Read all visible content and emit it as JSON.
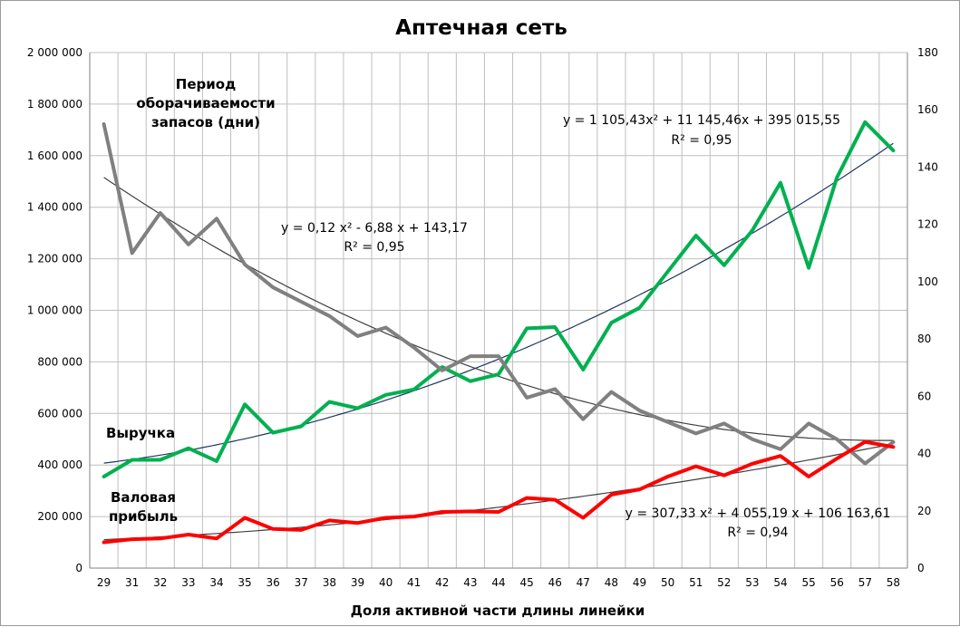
{
  "chart_data": {
    "type": "line",
    "title": "Аптечная сеть",
    "xlabel": "Доля активной части длины линейки",
    "ylabel": "",
    "x": [
      "29",
      "31",
      "32",
      "33",
      "34",
      "35",
      "36",
      "37",
      "38",
      "39",
      "40",
      "41",
      "42",
      "43",
      "44",
      "45",
      "46",
      "47",
      "48",
      "49",
      "50",
      "51",
      "52",
      "53",
      "54",
      "55",
      "56",
      "57",
      "58"
    ],
    "ylim": [
      0,
      2000000
    ],
    "y2lim": [
      0,
      180
    ],
    "y_ticks": [
      "0",
      "200 000",
      "400 000",
      "600 000",
      "800 000",
      "1 000 000",
      "1 200 000",
      "1 400 000",
      "1 600 000",
      "1 800 000",
      "2 000 000"
    ],
    "y2_ticks": [
      "0",
      "20",
      "40",
      "60",
      "80",
      "100",
      "120",
      "140",
      "160",
      "180"
    ],
    "series": [
      {
        "name": "Выручка",
        "axis": "left",
        "color": "#00b050",
        "values": [
          355000,
          420000,
          420000,
          465000,
          415000,
          635000,
          525000,
          550000,
          645000,
          620000,
          672000,
          693000,
          780000,
          725000,
          752000,
          930000,
          935000,
          770000,
          952000,
          1010000,
          1150000,
          1290000,
          1175000,
          1310000,
          1495000,
          1165000,
          1515000,
          1730000,
          1620000
        ]
      },
      {
        "name": "Период оборачиваемости запасов (дни)",
        "axis": "right",
        "color": "#808080",
        "values": [
          155,
          110,
          124,
          113,
          122,
          106,
          98,
          93,
          88,
          81,
          84,
          77,
          69,
          74,
          74,
          59.5,
          62.5,
          52,
          61.5,
          55,
          51,
          47,
          50.5,
          45,
          41.5,
          50.5,
          45,
          36.5,
          44
        ]
      },
      {
        "name": "Валовая прибыль",
        "axis": "left",
        "color": "#ff0000",
        "values": [
          100000,
          112000,
          115000,
          130000,
          115000,
          195000,
          152000,
          148000,
          185000,
          175000,
          195000,
          200000,
          218000,
          220000,
          218000,
          272000,
          265000,
          195000,
          285000,
          305000,
          355000,
          395000,
          360000,
          405000,
          435000,
          355000,
          425000,
          490000,
          470000
        ]
      }
    ],
    "trendlines": [
      {
        "series": "Выручка",
        "axis": "left",
        "color": "#1f3864",
        "equation": "y = 1 105,43x² + 11 145,46x + 395 015,55",
        "r2": "R² = 0,95",
        "coeffs": [
          1105.43,
          11145.46,
          395015.55
        ]
      },
      {
        "series": "Период оборачиваемости запасов (дни)",
        "axis": "right",
        "color": "#404040",
        "equation": "y = 0,12 x² - 6,88 x + 143,17",
        "r2": "R² = 0,95",
        "coeffs": [
          0.12,
          -6.88,
          143.17
        ]
      },
      {
        "series": "Валовая прибыль",
        "axis": "left",
        "color": "#404040",
        "equation": "y = 307,33 x² + 4 055,19 x + 106 163,61",
        "r2": "R² = 0,94",
        "coeffs": [
          307.33,
          4055.19,
          106163.61
        ]
      }
    ],
    "series_labels": {
      "period": [
        "Период",
        "оборачиваемости",
        "запасов (дни)"
      ],
      "revenue": [
        "Выручка"
      ],
      "profit": [
        "Валовая",
        "прибыль"
      ]
    },
    "grid": true,
    "legend": "none"
  }
}
